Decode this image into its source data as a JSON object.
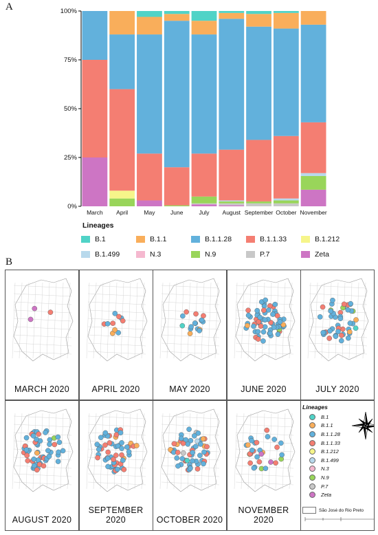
{
  "panels": {
    "a": "A",
    "b": "B"
  },
  "chart_data": {
    "type": "bar",
    "stacked": true,
    "categories": [
      "March",
      "April",
      "May",
      "June",
      "July",
      "August",
      "September",
      "October",
      "November"
    ],
    "y_ticks": [
      "0%",
      "25%",
      "50%",
      "75%",
      "100%"
    ],
    "ylim": [
      0,
      100
    ],
    "series": [
      {
        "name": "Zeta",
        "color": "#cd75c4",
        "values": [
          25,
          0,
          3,
          0,
          1,
          0.5,
          0,
          0,
          8.5
        ]
      },
      {
        "name": "P.7",
        "color": "#c8c8c8",
        "values": [
          0,
          0,
          0,
          0,
          0.5,
          1,
          1.5,
          1.5,
          0
        ]
      },
      {
        "name": "N.9",
        "color": "#99d55a",
        "values": [
          0,
          4,
          0,
          0.5,
          3.5,
          1,
          1,
          1.5,
          7
        ]
      },
      {
        "name": "N.3",
        "color": "#f5b8cf",
        "values": [
          0,
          0,
          0,
          0,
          0,
          0,
          0,
          0,
          0
        ]
      },
      {
        "name": "B.1.499",
        "color": "#b8d9ec",
        "values": [
          0,
          0,
          0,
          0,
          0,
          0.5,
          0,
          1,
          1.5
        ]
      },
      {
        "name": "B.1.212",
        "color": "#f6f58a",
        "values": [
          0,
          4,
          0,
          0,
          0,
          0,
          0,
          0,
          0
        ]
      },
      {
        "name": "B.1.1.33",
        "color": "#f47e72",
        "values": [
          50,
          52,
          24,
          19.5,
          22,
          26,
          31.5,
          32,
          26
        ]
      },
      {
        "name": "B.1.1.28",
        "color": "#62b1dc",
        "values": [
          25,
          28,
          61,
          75,
          61,
          67,
          58,
          55,
          50
        ]
      },
      {
        "name": "B.1.1",
        "color": "#f9ae5b",
        "values": [
          0,
          12,
          9,
          3.5,
          7,
          3,
          6.5,
          8,
          7
        ]
      },
      {
        "name": "B.1",
        "color": "#50d3c7",
        "values": [
          0,
          0,
          3,
          1.5,
          5,
          1,
          1.5,
          1,
          0
        ]
      }
    ]
  },
  "legend": {
    "title": "Lineages",
    "items": [
      {
        "label": "B.1",
        "color": "#50d3c7"
      },
      {
        "label": "B.1.1",
        "color": "#f9ae5b"
      },
      {
        "label": "B.1.1.28",
        "color": "#62b1dc"
      },
      {
        "label": "B.1.1.33",
        "color": "#f47e72"
      },
      {
        "label": "B.1.212",
        "color": "#f6f58a"
      },
      {
        "label": "B.1.499",
        "color": "#b8d9ec"
      },
      {
        "label": "N.3",
        "color": "#f5b8cf"
      },
      {
        "label": "N.9",
        "color": "#99d55a"
      },
      {
        "label": "P.7",
        "color": "#c8c8c8"
      },
      {
        "label": "Zeta",
        "color": "#cd75c4"
      }
    ]
  },
  "maps": [
    {
      "label": "MARCH 2020",
      "density": 3
    },
    {
      "label": "APRIL 2020",
      "density": 10
    },
    {
      "label": "MAY 2020",
      "density": 16
    },
    {
      "label": "JUNE 2020",
      "density": 60
    },
    {
      "label": "JULY 2020",
      "density": 45
    },
    {
      "label": "AUGUST 2020",
      "density": 55
    },
    {
      "label": "SEPTEMBER 2020",
      "density": 55
    },
    {
      "label": "OCTOBER 2020",
      "density": 55
    },
    {
      "label": "NOVEMBER 2020",
      "density": 30
    }
  ],
  "map_legend": {
    "title": "Lineages",
    "city": "São José do Rio Preto",
    "items": [
      {
        "label": "B.1",
        "color": "#50d3c7"
      },
      {
        "label": "B.1.1",
        "color": "#f9ae5b"
      },
      {
        "label": "B.1.1.28",
        "color": "#62b1dc"
      },
      {
        "label": "B.1.1.33",
        "color": "#f47e72"
      },
      {
        "label": "B.1.212",
        "color": "#f6f58a"
      },
      {
        "label": "B.1.499",
        "color": "#b8d9ec"
      },
      {
        "label": "N.3",
        "color": "#f5b8cf"
      },
      {
        "label": "N.9",
        "color": "#99d55a"
      },
      {
        "label": "P.7",
        "color": "#c8c8c8"
      },
      {
        "label": "Zeta",
        "color": "#cd75c4"
      }
    ]
  }
}
